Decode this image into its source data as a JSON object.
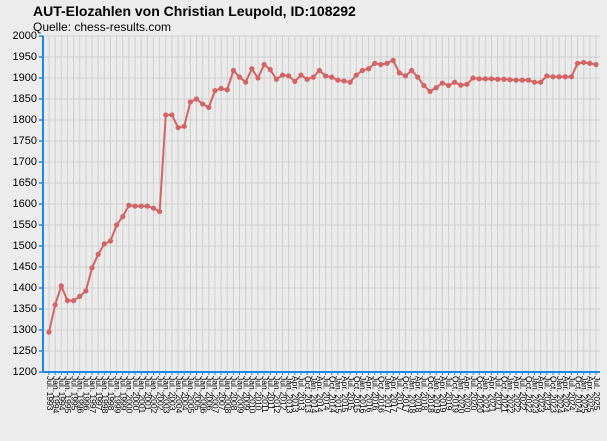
{
  "chart_data": {
    "type": "line",
    "title": "AUT-Elozahlen von Christian Leupold, ID:108292",
    "subtitle": "Quelle: chess-results.com",
    "categories": [
      "Jul. 1993",
      "Jan. 1994",
      "Jul. 1994",
      "Jan. 1995",
      "Jul. 1995",
      "Jan. 1996",
      "Jul. 1996",
      "Jan. 1997",
      "Jul. 1997",
      "Jan. 1998",
      "Jul. 1998",
      "Jan. 1999",
      "Jul. 1999",
      "Jan. 2000",
      "Jul. 2000",
      "Jan. 2001",
      "Jul. 2001",
      "Jan. 2002",
      "Jul. 2002",
      "Jan. 2003",
      "Jul. 2003",
      "Jan. 2004",
      "Jul. 2004",
      "Jan. 2005",
      "Jul. 2005",
      "Jan. 2006",
      "Jul. 2006",
      "Jan. 2007",
      "Jul. 2007",
      "Jan. 2008",
      "Jul. 2008",
      "Jan. 2009",
      "Jul. 2009",
      "Jan. 2010",
      "Jul. 2010",
      "Jan. 2011",
      "Jul. 2011",
      "Jan. 2012",
      "Jul. 2012",
      "Jan. 2013",
      "Apr. 2013",
      "Jul. 2013",
      "Oct. 2013",
      "Jan. 2014",
      "Apr. 2014",
      "Jul. 2014",
      "Oct. 2014",
      "Jan. 2015",
      "Apr. 2015",
      "Jul. 2015",
      "Oct. 2015",
      "Jan. 2016",
      "Apr. 2016",
      "Jul. 2016",
      "Oct. 2016",
      "Jan. 2017",
      "Apr. 2017",
      "Jul. 2017",
      "Oct. 2017",
      "Jan. 2018",
      "Apr. 2018",
      "Jul. 2018",
      "Oct. 2018",
      "Jan. 2019",
      "Apr. 2019",
      "Jul. 2019",
      "Oct. 2019",
      "Jan. 2020",
      "Apr. 2020",
      "Jul. 2020",
      "Oct. 2020",
      "Jan. 2021",
      "Apr. 2021",
      "Jul. 2021",
      "Oct. 2021",
      "Jan. 2022",
      "Apr. 2022",
      "Jul. 2022",
      "Oct. 2022",
      "Jan. 2023",
      "Apr. 2023",
      "Jul. 2023",
      "Oct. 2023",
      "Jan. 2024",
      "Apr. 2024",
      "Jul. 2024",
      "Oct. 2024",
      "Jan. 2025",
      "Apr. 2025",
      "Jul. 2025"
    ],
    "series": [
      {
        "name": "Elo",
        "color": "#d46464",
        "values": [
          1295,
          1360,
          1405,
          1370,
          1370,
          1380,
          1393,
          1448,
          1480,
          1505,
          1512,
          1550,
          1570,
          1597,
          1595,
          1595,
          1595,
          1590,
          1582,
          1812,
          1812,
          1782,
          1785,
          1843,
          1850,
          1838,
          1830,
          1870,
          1875,
          1872,
          1918,
          1902,
          1890,
          1922,
          1900,
          1932,
          1920,
          1897,
          1907,
          1905,
          1892,
          1907,
          1897,
          1902,
          1918,
          1905,
          1902,
          1895,
          1893,
          1890,
          1907,
          1918,
          1922,
          1935,
          1932,
          1935,
          1942,
          1912,
          1905,
          1918,
          1902,
          1882,
          1868,
          1877,
          1888,
          1882,
          1890,
          1883,
          1885,
          1900,
          1898,
          1898,
          1898,
          1897,
          1897,
          1896,
          1895,
          1895,
          1895,
          1890,
          1890,
          1905,
          1903,
          1903,
          1903,
          1903,
          1935,
          1937,
          1935,
          1932
        ]
      }
    ],
    "ylim": [
      1200,
      2000
    ],
    "yticks": [
      1200,
      1250,
      1300,
      1350,
      1400,
      1450,
      1500,
      1550,
      1600,
      1650,
      1700,
      1750,
      1800,
      1850,
      1900,
      1950,
      2000
    ],
    "grid": true
  }
}
